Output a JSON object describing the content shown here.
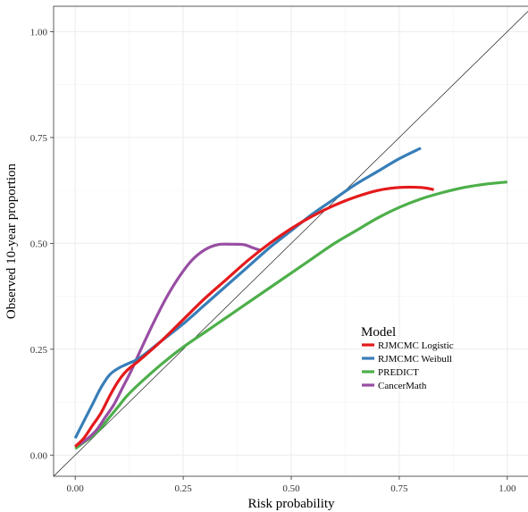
{
  "chart_data": {
    "type": "line",
    "title": "",
    "xlabel": "Risk probability",
    "ylabel": "Observed 10-year proportion",
    "xlim": [
      -0.05,
      1.05
    ],
    "ylim": [
      -0.05,
      1.06
    ],
    "x_ticks": [
      0,
      0.25,
      0.5,
      0.75,
      1
    ],
    "x_tick_labels": [
      "0.00",
      "0.25",
      "0.50",
      "0.75",
      "1.00"
    ],
    "y_ticks": [
      0,
      0.25,
      0.5,
      0.75,
      1
    ],
    "y_tick_labels": [
      "0.00",
      "0.25",
      "0.50",
      "0.75",
      "1.00"
    ],
    "grid": true,
    "reference_line": "identity",
    "legend": {
      "title": "Model",
      "placement": "right-inside"
    },
    "series": [
      {
        "name": "RJMCMC Logistic",
        "color": "#E41A1C",
        "points": [
          [
            0.0,
            0.02
          ],
          [
            0.02,
            0.04
          ],
          [
            0.04,
            0.07
          ],
          [
            0.06,
            0.1
          ],
          [
            0.08,
            0.14
          ],
          [
            0.1,
            0.175
          ],
          [
            0.12,
            0.2
          ],
          [
            0.15,
            0.225
          ],
          [
            0.2,
            0.27
          ],
          [
            0.25,
            0.32
          ],
          [
            0.3,
            0.37
          ],
          [
            0.35,
            0.415
          ],
          [
            0.4,
            0.46
          ],
          [
            0.45,
            0.5
          ],
          [
            0.5,
            0.535
          ],
          [
            0.55,
            0.565
          ],
          [
            0.6,
            0.59
          ],
          [
            0.65,
            0.61
          ],
          [
            0.7,
            0.625
          ],
          [
            0.75,
            0.632
          ],
          [
            0.8,
            0.632
          ],
          [
            0.83,
            0.627
          ]
        ]
      },
      {
        "name": "RJMCMC Weibull",
        "color": "#377EB8",
        "points": [
          [
            0.0,
            0.04
          ],
          [
            0.02,
            0.08
          ],
          [
            0.04,
            0.12
          ],
          [
            0.06,
            0.16
          ],
          [
            0.08,
            0.19
          ],
          [
            0.1,
            0.205
          ],
          [
            0.12,
            0.215
          ],
          [
            0.15,
            0.23
          ],
          [
            0.2,
            0.27
          ],
          [
            0.25,
            0.31
          ],
          [
            0.3,
            0.355
          ],
          [
            0.35,
            0.4
          ],
          [
            0.4,
            0.445
          ],
          [
            0.45,
            0.49
          ],
          [
            0.5,
            0.53
          ],
          [
            0.55,
            0.57
          ],
          [
            0.6,
            0.605
          ],
          [
            0.65,
            0.64
          ],
          [
            0.7,
            0.67
          ],
          [
            0.75,
            0.7
          ],
          [
            0.8,
            0.725
          ]
        ]
      },
      {
        "name": "PREDICT",
        "color": "#4DAF4A",
        "points": [
          [
            0.0,
            0.015
          ],
          [
            0.02,
            0.03
          ],
          [
            0.04,
            0.045
          ],
          [
            0.06,
            0.065
          ],
          [
            0.08,
            0.09
          ],
          [
            0.1,
            0.115
          ],
          [
            0.12,
            0.14
          ],
          [
            0.15,
            0.17
          ],
          [
            0.2,
            0.215
          ],
          [
            0.25,
            0.255
          ],
          [
            0.3,
            0.29
          ],
          [
            0.35,
            0.325
          ],
          [
            0.4,
            0.36
          ],
          [
            0.45,
            0.395
          ],
          [
            0.5,
            0.43
          ],
          [
            0.55,
            0.465
          ],
          [
            0.6,
            0.5
          ],
          [
            0.65,
            0.53
          ],
          [
            0.7,
            0.56
          ],
          [
            0.75,
            0.585
          ],
          [
            0.8,
            0.605
          ],
          [
            0.85,
            0.62
          ],
          [
            0.9,
            0.632
          ],
          [
            0.95,
            0.64
          ],
          [
            1.0,
            0.645
          ]
        ]
      },
      {
        "name": "CancerMath",
        "color": "#984EA3",
        "points": [
          [
            0.01,
            0.025
          ],
          [
            0.03,
            0.04
          ],
          [
            0.05,
            0.06
          ],
          [
            0.07,
            0.09
          ],
          [
            0.09,
            0.12
          ],
          [
            0.11,
            0.16
          ],
          [
            0.13,
            0.2
          ],
          [
            0.15,
            0.245
          ],
          [
            0.18,
            0.31
          ],
          [
            0.21,
            0.37
          ],
          [
            0.24,
            0.42
          ],
          [
            0.27,
            0.46
          ],
          [
            0.3,
            0.485
          ],
          [
            0.33,
            0.497
          ],
          [
            0.36,
            0.498
          ],
          [
            0.39,
            0.497
          ],
          [
            0.41,
            0.49
          ],
          [
            0.43,
            0.483
          ]
        ]
      }
    ]
  }
}
